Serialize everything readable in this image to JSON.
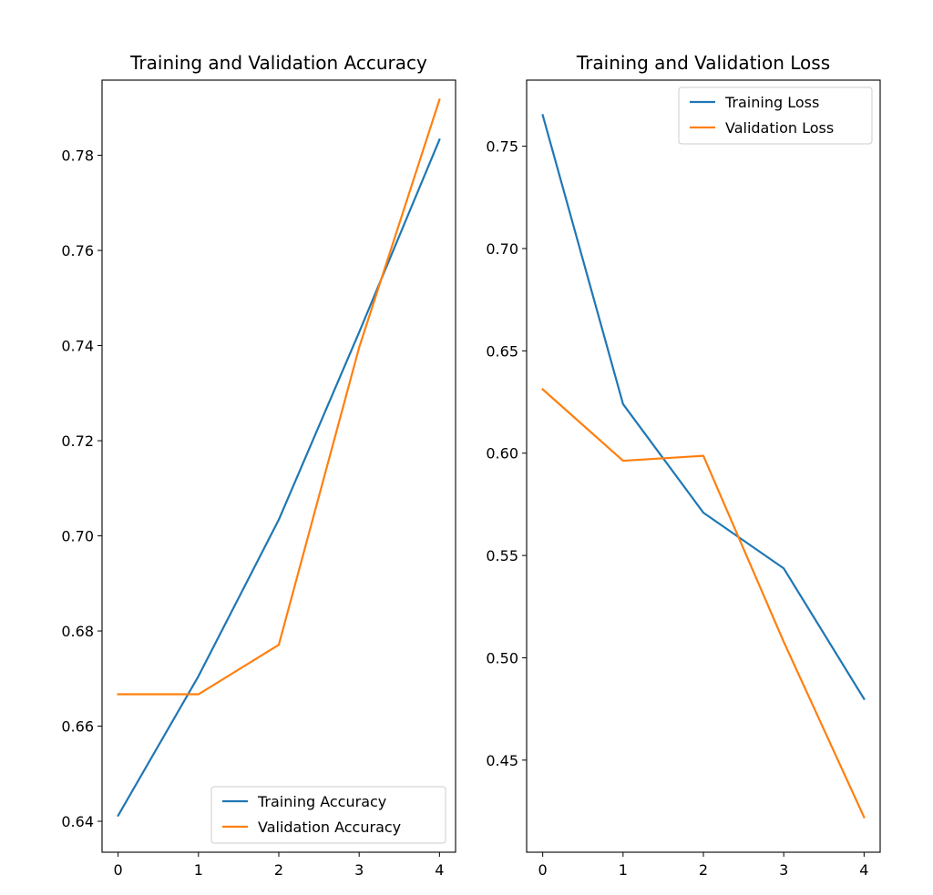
{
  "chart_data": [
    {
      "type": "line",
      "title": "Training and Validation Accuracy",
      "xlabel": "",
      "ylabel": "",
      "x": [
        0,
        1,
        2,
        3,
        4
      ],
      "series": [
        {
          "name": "Training Accuracy",
          "color": "#1f77b4",
          "values": [
            0.6412,
            0.6705,
            0.7034,
            0.7428,
            0.7833
          ]
        },
        {
          "name": "Validation Accuracy",
          "color": "#ff7f0e",
          "values": [
            0.6667,
            0.6667,
            0.6771,
            0.7396,
            0.7917
          ]
        }
      ],
      "xlim": [
        -0.2,
        4.2
      ],
      "ylim": [
        0.6335,
        0.7958
      ],
      "xticks": [
        0,
        1,
        2,
        3,
        4
      ],
      "xtick_labels": [
        "0",
        "1",
        "2",
        "3",
        "4"
      ],
      "yticks": [
        0.64,
        0.66,
        0.68,
        0.7,
        0.72,
        0.74,
        0.76,
        0.78
      ],
      "ytick_labels": [
        "0.64",
        "0.66",
        "0.68",
        "0.70",
        "0.72",
        "0.74",
        "0.76",
        "0.78"
      ],
      "grid": false,
      "legend_position": "lower-right"
    },
    {
      "type": "line",
      "title": "Training and Validation Loss",
      "xlabel": "",
      "ylabel": "",
      "x": [
        0,
        1,
        2,
        3,
        4
      ],
      "series": [
        {
          "name": "Training Loss",
          "color": "#1f77b4",
          "values": [
            0.7652,
            0.624,
            0.5709,
            0.5437,
            0.4799
          ]
        },
        {
          "name": "Validation Loss",
          "color": "#ff7f0e",
          "values": [
            0.6312,
            0.5963,
            0.5987,
            0.5078,
            0.4221
          ]
        }
      ],
      "xlim": [
        -0.2,
        4.2
      ],
      "ylim": [
        0.405,
        0.7823
      ],
      "xticks": [
        0,
        1,
        2,
        3,
        4
      ],
      "xtick_labels": [
        "0",
        "1",
        "2",
        "3",
        "4"
      ],
      "yticks": [
        0.45,
        0.5,
        0.55,
        0.6,
        0.65,
        0.7,
        0.75
      ],
      "ytick_labels": [
        "0.45",
        "0.50",
        "0.55",
        "0.60",
        "0.65",
        "0.70",
        "0.75"
      ],
      "grid": false,
      "legend_position": "upper-right"
    }
  ]
}
